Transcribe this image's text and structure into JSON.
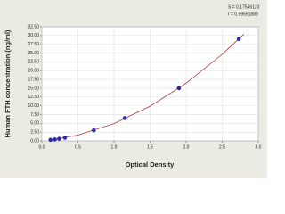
{
  "chart_data": {
    "type": "scatter",
    "stats": [
      "S = 0.17546123",
      "r = 0.99591888"
    ],
    "xlabel": "Optical Density",
    "ylabel": "Human FTH concentration (ng/ml)",
    "x": [
      0.12,
      0.18,
      0.24,
      0.32,
      0.72,
      1.15,
      1.9,
      2.73
    ],
    "values": [
      0.3,
      0.4,
      0.6,
      0.9,
      3.0,
      6.5,
      15.0,
      29.0
    ],
    "color": "#2a2aa8",
    "curve": {
      "color": "#b03838",
      "x": [
        0.1,
        0.5,
        1.0,
        1.5,
        2.0,
        2.5,
        2.8
      ],
      "values": [
        0.2,
        1.64,
        4.93,
        9.86,
        16.44,
        24.66,
        30.38
      ]
    },
    "xlim": [
      0,
      3
    ],
    "xticks": [
      {
        "value": 0,
        "label": "0.0"
      },
      0.5,
      {
        "value": 1,
        "label": "1.0"
      },
      1.5,
      {
        "value": 2,
        "label": "2.0"
      },
      2.5,
      {
        "value": 3,
        "label": "3.0"
      }
    ],
    "ylim": [
      0,
      32.5
    ],
    "yticks": [
      {
        "value": 0,
        "label": "0.00"
      },
      {
        "value": 2.5,
        "label": "2.50"
      },
      {
        "value": 5,
        "label": "5.00"
      },
      {
        "value": 7.5,
        "label": "7.50"
      },
      {
        "value": 10,
        "label": "10.00"
      },
      {
        "value": 12.5,
        "label": "12.50"
      },
      {
        "value": 15,
        "label": "15.00"
      },
      {
        "value": 17.5,
        "label": "17.50"
      },
      {
        "value": 20,
        "label": "20.00"
      },
      {
        "value": 22.5,
        "label": "22.50"
      },
      {
        "value": 25,
        "label": "25.00"
      },
      {
        "value": 27.5,
        "label": "27.50"
      },
      {
        "value": 30,
        "label": "30.00"
      },
      {
        "value": 32.5,
        "label": "32.50"
      }
    ],
    "grid": true
  }
}
